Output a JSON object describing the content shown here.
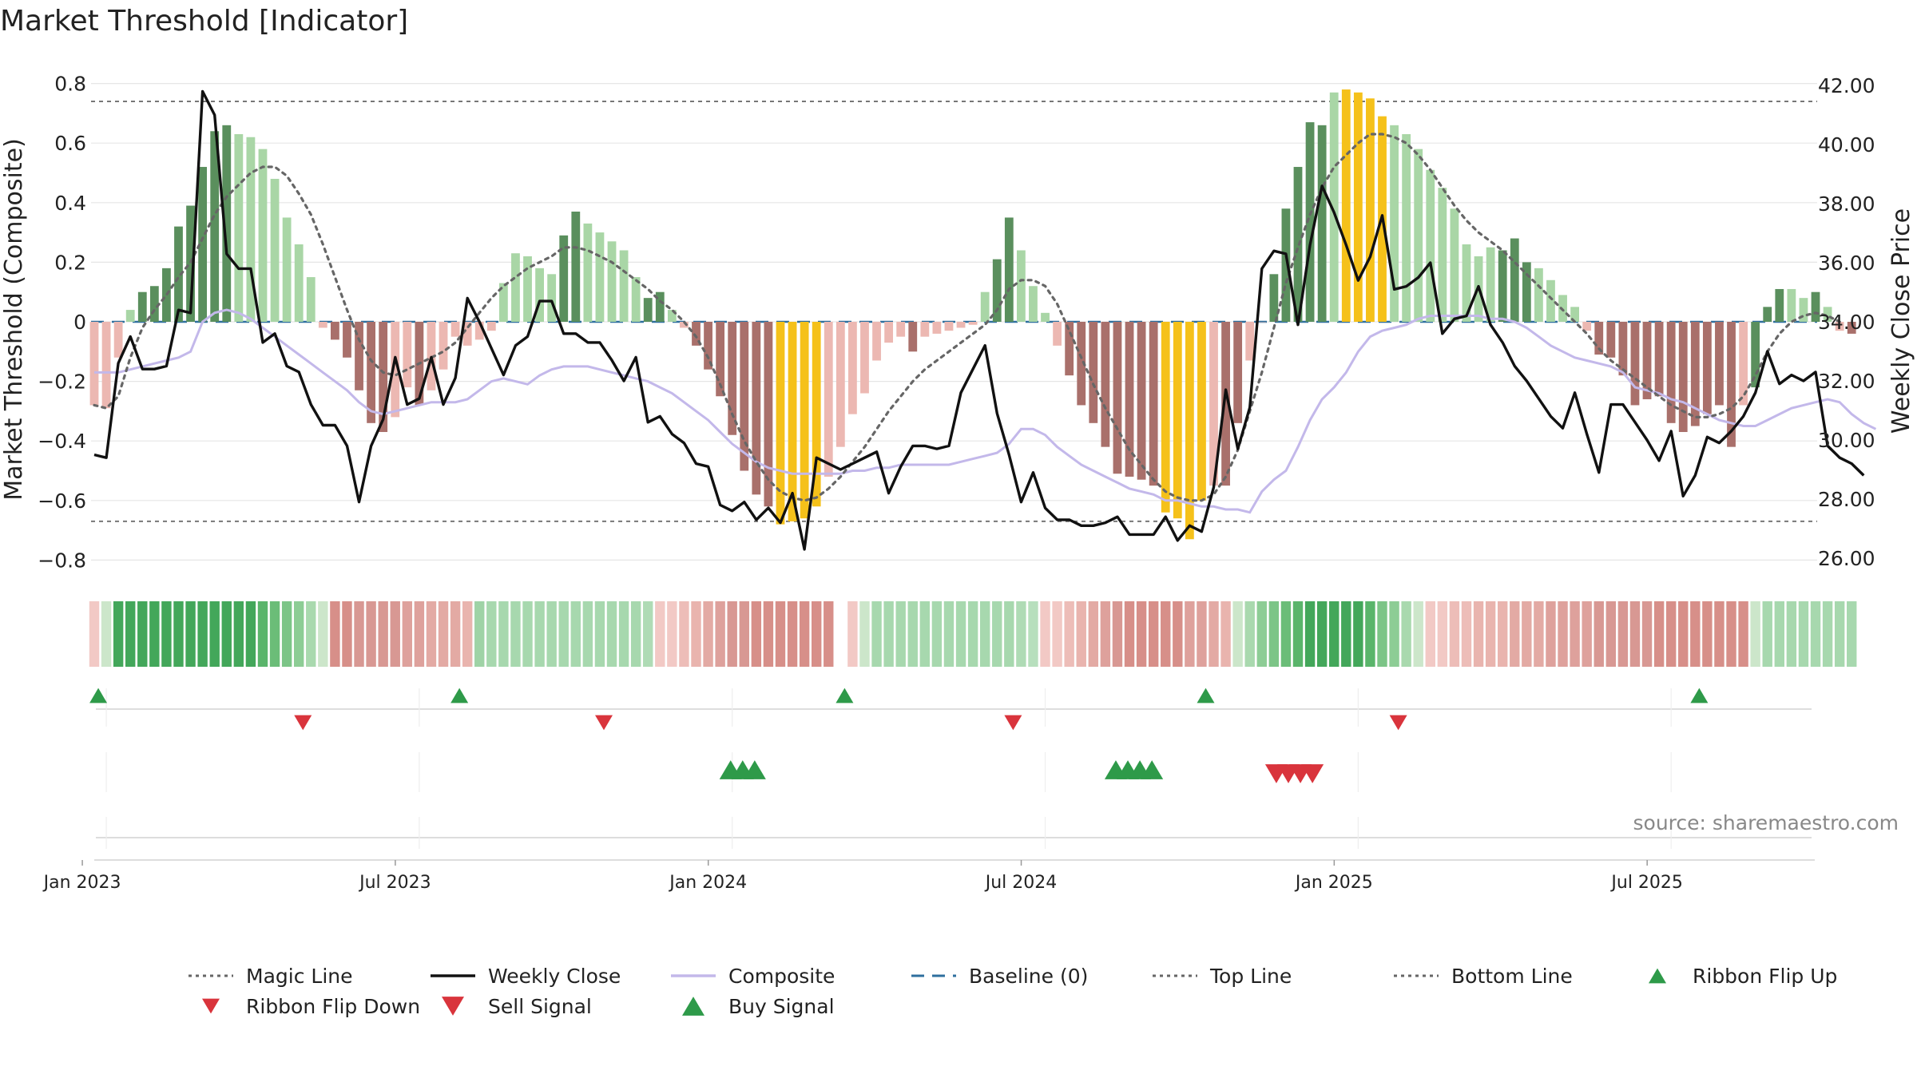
{
  "colors": {
    "strong_green": "#5a8f5d",
    "light_green": "#a9d6a6",
    "strong_red": "#a9706b",
    "light_red": "#ecb8b2",
    "gold": "#f5c11a",
    "weekly_close": "#111111",
    "composite": "#c3b8ea",
    "magic": "#666666",
    "baseline": "#2e6f9e",
    "buy": "#2e9a49",
    "sell": "#d9343c",
    "grid": "#e6e6e6"
  },
  "chart_data": {
    "type": "bar",
    "title": "Market Threshold [Indicator]",
    "ylabel_left": "Market Threshold (Composite)",
    "ylabel_right": "Weekly Close Price",
    "source": "source: sharemaestro.com",
    "y_left_ticks": [
      "0.8",
      "0.6",
      "0.4",
      "0.2",
      "0",
      "−0.2",
      "−0.4",
      "−0.6",
      "−0.8"
    ],
    "y_right_ticks": [
      "42.00",
      "40.00",
      "38.00",
      "36.00",
      "34.00",
      "32.00",
      "30.00",
      "28.00",
      "26.00"
    ],
    "ylim_left": [
      -0.86,
      0.86
    ],
    "ylim_right": [
      25.6,
      42.4
    ],
    "x_tick_labels": [
      "Jan 2023",
      "Jul 2023",
      "Jan 2024",
      "Jul 2024",
      "Jan 2025",
      "Jul 2025"
    ],
    "x_tick_weeks": [
      1,
      27,
      53,
      79,
      105,
      131
    ],
    "top_line": 0.74,
    "bottom_line": -0.67,
    "baseline": 0,
    "bars": [
      -0.28,
      -0.29,
      -0.12,
      0.04,
      0.1,
      0.12,
      0.18,
      0.32,
      0.39,
      0.52,
      0.64,
      0.66,
      0.63,
      0.62,
      0.58,
      0.48,
      0.35,
      0.26,
      0.15,
      -0.02,
      -0.06,
      -0.12,
      -0.23,
      -0.34,
      -0.37,
      -0.32,
      -0.22,
      -0.28,
      -0.23,
      -0.16,
      -0.05,
      -0.08,
      -0.06,
      -0.03,
      0.13,
      0.23,
      0.22,
      0.18,
      0.16,
      0.29,
      0.37,
      0.33,
      0.3,
      0.27,
      0.24,
      0.15,
      0.08,
      0.1,
      0.04,
      -0.02,
      -0.08,
      -0.16,
      -0.25,
      -0.38,
      -0.5,
      -0.58,
      -0.62,
      -0.68,
      -0.67,
      -0.66,
      -0.62,
      -0.52,
      -0.42,
      -0.31,
      -0.24,
      -0.13,
      -0.07,
      -0.05,
      -0.1,
      -0.05,
      -0.04,
      -0.03,
      -0.02,
      -0.01,
      0.1,
      0.21,
      0.35,
      0.24,
      0.12,
      0.03,
      -0.08,
      -0.18,
      -0.28,
      -0.34,
      -0.42,
      -0.51,
      -0.52,
      -0.53,
      -0.55,
      -0.64,
      -0.66,
      -0.73,
      -0.6,
      -0.55,
      -0.55,
      -0.34,
      -0.13,
      0,
      0.16,
      0.38,
      0.52,
      0.67,
      0.66,
      0.77,
      0.78,
      0.77,
      0.75,
      0.69,
      0.66,
      0.63,
      0.58,
      0.51,
      0.45,
      0.38,
      0.26,
      0.22,
      0.25,
      0.24,
      0.28,
      0.2,
      0.18,
      0.14,
      0.09,
      0.05,
      -0.03,
      -0.11,
      -0.12,
      -0.18,
      -0.28,
      -0.26,
      -0.25,
      -0.34,
      -0.37,
      -0.35,
      -0.31,
      -0.28,
      -0.42,
      -0.28,
      -0.22,
      0.05,
      0.11,
      0.11,
      0.08,
      0.1,
      0.05,
      -0.03,
      -0.04
    ],
    "bar_colors": [
      "light_red",
      "light_red",
      "light_red",
      "light_green",
      "strong_green",
      "strong_green",
      "strong_green",
      "strong_green",
      "strong_green",
      "strong_green",
      "strong_green",
      "strong_green",
      "light_green",
      "light_green",
      "light_green",
      "light_green",
      "light_green",
      "light_green",
      "light_green",
      "light_red",
      "strong_red",
      "strong_red",
      "strong_red",
      "strong_red",
      "strong_red",
      "light_red",
      "light_red",
      "strong_red",
      "light_red",
      "light_red",
      "light_red",
      "light_red",
      "light_red",
      "light_red",
      "light_green",
      "light_green",
      "light_green",
      "light_green",
      "light_green",
      "strong_green",
      "strong_green",
      "light_green",
      "light_green",
      "light_green",
      "light_green",
      "light_green",
      "strong_green",
      "strong_green",
      "light_green",
      "light_red",
      "strong_red",
      "strong_red",
      "strong_red",
      "strong_red",
      "strong_red",
      "strong_red",
      "strong_red",
      "gold",
      "gold",
      "gold",
      "gold",
      "light_red",
      "light_red",
      "light_red",
      "light_red",
      "light_red",
      "light_red",
      "light_red",
      "strong_red",
      "light_red",
      "light_red",
      "light_red",
      "light_red",
      "light_red",
      "light_green",
      "strong_green",
      "strong_green",
      "light_green",
      "light_green",
      "light_green",
      "light_red",
      "strong_red",
      "strong_red",
      "strong_red",
      "strong_red",
      "strong_red",
      "strong_red",
      "strong_red",
      "strong_red",
      "gold",
      "gold",
      "gold",
      "gold",
      "light_red",
      "strong_red",
      "strong_red",
      "light_red",
      "light_red",
      "strong_green",
      "strong_green",
      "strong_green",
      "strong_green",
      "strong_green",
      "light_green",
      "gold",
      "gold",
      "gold",
      "gold",
      "light_green",
      "light_green",
      "light_green",
      "light_green",
      "light_green",
      "light_green",
      "light_green",
      "light_green",
      "light_green",
      "strong_green",
      "strong_green",
      "strong_green",
      "light_green",
      "light_green",
      "light_green",
      "light_green",
      "light_red",
      "strong_red",
      "strong_red",
      "strong_red",
      "strong_red",
      "strong_red",
      "strong_red",
      "strong_red",
      "strong_red",
      "strong_red",
      "strong_red",
      "strong_red",
      "strong_red",
      "light_red",
      "strong_green",
      "strong_green",
      "strong_green",
      "light_green",
      "light_green",
      "strong_green",
      "light_green",
      "light_red",
      "strong_red"
    ],
    "series": [
      {
        "name": "Magic Line",
        "axis": "left",
        "values": [
          -0.28,
          -0.29,
          -0.25,
          -0.12,
          -0.02,
          0.04,
          0.09,
          0.15,
          0.2,
          0.28,
          0.36,
          0.42,
          0.46,
          0.5,
          0.52,
          0.52,
          0.49,
          0.43,
          0.36,
          0.26,
          0.15,
          0.04,
          -0.06,
          -0.13,
          -0.17,
          -0.18,
          -0.16,
          -0.14,
          -0.12,
          -0.1,
          -0.07,
          -0.02,
          0.03,
          0.08,
          0.12,
          0.15,
          0.18,
          0.2,
          0.22,
          0.25,
          0.25,
          0.24,
          0.22,
          0.2,
          0.17,
          0.14,
          0.11,
          0.07,
          0.04,
          0,
          -0.05,
          -0.12,
          -0.21,
          -0.31,
          -0.4,
          -0.47,
          -0.53,
          -0.57,
          -0.59,
          -0.6,
          -0.59,
          -0.56,
          -0.52,
          -0.47,
          -0.42,
          -0.36,
          -0.3,
          -0.25,
          -0.2,
          -0.16,
          -0.13,
          -0.1,
          -0.07,
          -0.04,
          -0.01,
          0.04,
          0.11,
          0.14,
          0.14,
          0.12,
          0.06,
          -0.03,
          -0.12,
          -0.21,
          -0.29,
          -0.36,
          -0.43,
          -0.48,
          -0.53,
          -0.57,
          -0.59,
          -0.6,
          -0.6,
          -0.58,
          -0.52,
          -0.43,
          -0.3,
          -0.17,
          -0.02,
          0.13,
          0.25,
          0.36,
          0.45,
          0.52,
          0.56,
          0.6,
          0.63,
          0.63,
          0.62,
          0.6,
          0.56,
          0.51,
          0.45,
          0.39,
          0.34,
          0.3,
          0.27,
          0.24,
          0.2,
          0.16,
          0.12,
          0.08,
          0.04,
          0,
          -0.04,
          -0.09,
          -0.13,
          -0.16,
          -0.19,
          -0.22,
          -0.25,
          -0.28,
          -0.3,
          -0.32,
          -0.32,
          -0.31,
          -0.29,
          -0.25,
          -0.18,
          -0.1,
          -0.04,
          0,
          0.02,
          0.03,
          0.02,
          0
        ]
      },
      {
        "name": "Weekly Close",
        "axis": "right",
        "values": [
          29.5,
          29.4,
          32.6,
          33.5,
          32.4,
          32.4,
          32.5,
          34.4,
          34.3,
          41.8,
          41.0,
          36.3,
          35.8,
          35.8,
          33.3,
          33.6,
          32.5,
          32.3,
          31.2,
          30.5,
          30.5,
          29.8,
          27.9,
          29.8,
          30.7,
          32.8,
          31.2,
          31.4,
          32.8,
          31.2,
          32.1,
          34.8,
          34.0,
          33.1,
          32.2,
          33.2,
          33.5,
          34.7,
          34.7,
          33.6,
          33.6,
          33.3,
          33.3,
          32.7,
          32.0,
          32.8,
          30.6,
          30.8,
          30.2,
          29.9,
          29.2,
          29.1,
          27.8,
          27.6,
          27.9,
          27.3,
          27.7,
          27.2,
          28.2,
          26.3,
          29.4,
          29.2,
          29.0,
          29.2,
          29.4,
          29.6,
          28.2,
          29.1,
          29.8,
          29.8,
          29.7,
          29.8,
          31.6,
          32.4,
          33.2,
          30.9,
          29.5,
          27.9,
          28.9,
          27.7,
          27.3,
          27.3,
          27.1,
          27.1,
          27.2,
          27.4,
          26.8,
          26.8,
          26.8,
          27.4,
          26.6,
          27.1,
          26.9,
          28.4,
          31.7,
          29.7,
          31.1,
          35.8,
          36.4,
          36.3,
          33.9,
          36.6,
          38.6,
          37.7,
          36.6,
          35.4,
          36.2,
          37.6,
          35.1,
          35.2,
          35.5,
          36.0,
          33.6,
          34.1,
          34.2,
          35.2,
          33.9,
          33.3,
          32.5,
          32.0,
          31.4,
          30.8,
          30.4,
          31.6,
          30.2,
          28.9,
          31.2,
          31.2,
          30.6,
          30.0,
          29.3,
          30.3,
          28.1,
          28.8,
          30.1,
          29.9,
          30.3,
          30.8,
          31.6,
          33.0,
          31.9,
          32.2,
          32.0,
          32.3,
          29.8,
          29.4,
          29.2,
          28.8
        ]
      },
      {
        "name": "Composite",
        "axis": "left",
        "values": [
          -0.17,
          -0.17,
          -0.17,
          -0.16,
          -0.15,
          -0.14,
          -0.13,
          -0.12,
          -0.1,
          0,
          0.03,
          0.04,
          0.03,
          0.01,
          -0.02,
          -0.05,
          -0.08,
          -0.11,
          -0.14,
          -0.17,
          -0.2,
          -0.23,
          -0.27,
          -0.3,
          -0.31,
          -0.3,
          -0.29,
          -0.28,
          -0.27,
          -0.27,
          -0.27,
          -0.26,
          -0.23,
          -0.2,
          -0.19,
          -0.2,
          -0.21,
          -0.18,
          -0.16,
          -0.15,
          -0.15,
          -0.15,
          -0.16,
          -0.17,
          -0.18,
          -0.19,
          -0.2,
          -0.22,
          -0.24,
          -0.27,
          -0.3,
          -0.33,
          -0.37,
          -0.41,
          -0.44,
          -0.47,
          -0.49,
          -0.5,
          -0.51,
          -0.51,
          -0.51,
          -0.51,
          -0.51,
          -0.5,
          -0.5,
          -0.49,
          -0.49,
          -0.48,
          -0.48,
          -0.48,
          -0.48,
          -0.48,
          -0.47,
          -0.46,
          -0.45,
          -0.44,
          -0.41,
          -0.36,
          -0.36,
          -0.38,
          -0.42,
          -0.45,
          -0.48,
          -0.5,
          -0.52,
          -0.54,
          -0.56,
          -0.57,
          -0.58,
          -0.6,
          -0.6,
          -0.61,
          -0.62,
          -0.62,
          -0.63,
          -0.63,
          -0.64,
          -0.57,
          -0.53,
          -0.5,
          -0.42,
          -0.33,
          -0.26,
          -0.22,
          -0.17,
          -0.1,
          -0.05,
          -0.03,
          -0.02,
          -0.01,
          0.01,
          0.02,
          0.02,
          0.02,
          0.02,
          0.02,
          0.01,
          0.01,
          0,
          -0.02,
          -0.05,
          -0.08,
          -0.1,
          -0.12,
          -0.13,
          -0.14,
          -0.15,
          -0.17,
          -0.22,
          -0.23,
          -0.24,
          -0.26,
          -0.27,
          -0.29,
          -0.31,
          -0.33,
          -0.34,
          -0.35,
          -0.35,
          -0.33,
          -0.31,
          -0.29,
          -0.28,
          -0.27,
          -0.26,
          -0.27,
          -0.31,
          -0.34,
          -0.36
        ]
      }
    ],
    "ribbon_colors": [
      "#f2c9c5",
      "#cce6ca",
      "#43a75a",
      "#43a75a",
      "#43a75a",
      "#43a75a",
      "#43a75a",
      "#43a75a",
      "#43a75a",
      "#43a75a",
      "#43a75a",
      "#43a75a",
      "#43a75a",
      "#43a75a",
      "#5ab56b",
      "#6bbd78",
      "#7cc587",
      "#8dcd95",
      "#a9d9ae",
      "#cce6ca",
      "#d78f89",
      "#d78f89",
      "#d89893",
      "#d89893",
      "#d89893",
      "#d89893",
      "#dea19c",
      "#dea19c",
      "#e3aaa4",
      "#e3aaa4",
      "#e3aaa4",
      "#e9b4ae",
      "#9fd3a6",
      "#a7d8ae",
      "#a7d8ae",
      "#a7d8ae",
      "#a7d8ae",
      "#a7d8ae",
      "#a7d8ae",
      "#a7d8ae",
      "#a7d8ae",
      "#a7d8ae",
      "#a7d8ae",
      "#a7d8ae",
      "#a7d8ae",
      "#a7d8ae",
      "#afdbb5",
      "#f2c9c5",
      "#f2c9c5",
      "#edbdb8",
      "#e9b4ae",
      "#e3aaa4",
      "#dea19c",
      "#d89893",
      "#d89893",
      "#d78f89",
      "#d78f89",
      "#d78f89",
      "#d78f89",
      "#d78f89",
      "#d78f89",
      "#d78f89",
      null,
      "#f2c9c5",
      "#cce6ca",
      "#a7d8ae",
      "#a7d8ae",
      "#a7d8ae",
      "#a7d8ae",
      "#a7d8ae",
      "#a7d8ae",
      "#a7d8ae",
      "#a7d8ae",
      "#a7d8ae",
      "#a7d8ae",
      "#a7d8ae",
      "#a7d8ae",
      "#afdbb5",
      "#b7dfbd",
      "#f2c9c5",
      "#f2c9c5",
      "#edbdb8",
      "#e9b4ae",
      "#e3aaa4",
      "#dea19c",
      "#d89893",
      "#d78f89",
      "#d78f89",
      "#d78f89",
      "#d78f89",
      "#d78f89",
      "#dea19c",
      "#dea19c",
      "#e3aaa4",
      "#e9b4ae",
      "#cce6ca",
      "#a9d9ae",
      "#8dcd95",
      "#7cc587",
      "#6bbd78",
      "#5ab56b",
      "#43a75a",
      "#43a75a",
      "#43a75a",
      "#43a75a",
      "#43a75a",
      "#5ab56b",
      "#7cc587",
      "#8dcd95",
      "#a9d9ae",
      "#cce6ca",
      "#f2c9c5",
      "#f2c9c5",
      "#edbdb8",
      "#edbdb8",
      "#e9b4ae",
      "#e9b4ae",
      "#e9b4ae",
      "#e3aaa4",
      "#e3aaa4",
      "#e3aaa4",
      "#dea19c",
      "#dea19c",
      "#dea19c",
      "#dea19c",
      "#d89893",
      "#d89893",
      "#d89893",
      "#d89893",
      "#d89893",
      "#d78f89",
      "#d78f89",
      "#d78f89",
      "#d78f89",
      "#d78f89",
      "#d78f89",
      "#d78f89",
      "#d78f89",
      "#cce6ca",
      "#a7d8ae",
      "#a7d8ae",
      "#a7d8ae",
      "#a7d8ae",
      "#a7d8ae",
      "#a7d8ae",
      "#a7d8ae",
      "#a7d8ae"
    ],
    "ribbon_flip_up_weeks": [
      1,
      31,
      63,
      93,
      134
    ],
    "ribbon_flip_down_weeks": [
      18,
      43,
      77,
      109
    ],
    "buy_signal_weeks": [
      53,
      54,
      55,
      85,
      86,
      87,
      88
    ],
    "sell_signal_weeks": [
      99,
      100,
      101,
      102
    ]
  },
  "legend": [
    {
      "label": "Magic Line",
      "symbol": "dotted",
      "color_key": "magic"
    },
    {
      "label": "Weekly Close",
      "symbol": "solid",
      "color_key": "weekly_close"
    },
    {
      "label": "Composite",
      "symbol": "solid",
      "color_key": "composite"
    },
    {
      "label": "Baseline (0)",
      "symbol": "dashed",
      "color_key": "baseline"
    },
    {
      "label": "Top Line",
      "symbol": "dotted",
      "color_key": "magic"
    },
    {
      "label": "Bottom Line",
      "symbol": "dotted",
      "color_key": "magic"
    },
    {
      "label": "Ribbon Flip Up",
      "symbol": "tri-up-small",
      "color_key": "buy"
    },
    {
      "label": "Ribbon Flip Down",
      "symbol": "tri-down-small",
      "color_key": "sell"
    },
    {
      "label": "Sell Signal",
      "symbol": "tri-down-big",
      "color_key": "sell"
    },
    {
      "label": "Buy Signal",
      "symbol": "tri-up-big",
      "color_key": "buy"
    }
  ]
}
